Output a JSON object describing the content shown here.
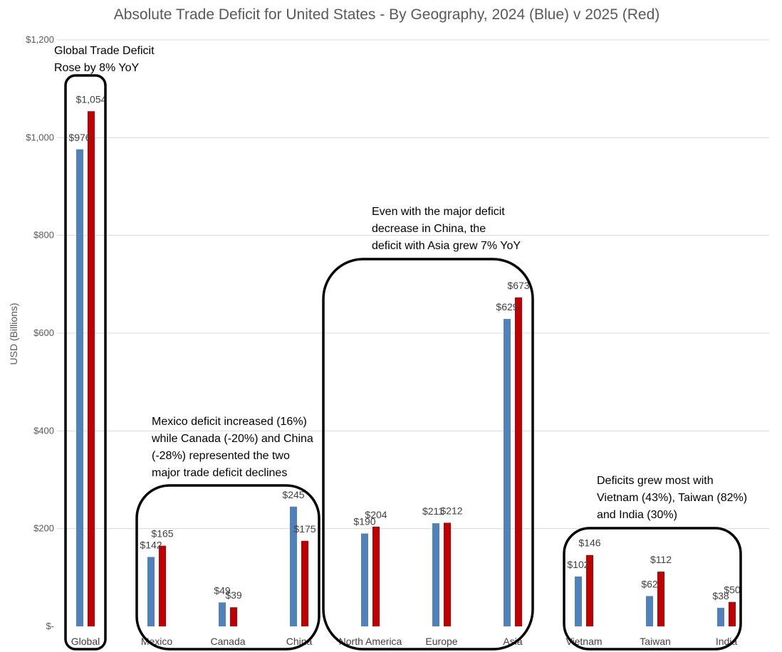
{
  "chart_data": {
    "type": "bar",
    "title": "Absolute Trade Deficit for United States - By Geography, 2024 (Blue) v 2025 (Red)",
    "ylabel": "USD (Billions)",
    "xlabel": "",
    "ylim": [
      0,
      1200
    ],
    "yticks": [
      0,
      200,
      400,
      600,
      800,
      1000,
      1200
    ],
    "ytick_labels": [
      "$-",
      "$200",
      "$400",
      "$600",
      "$800",
      "$1,000",
      "$1,200"
    ],
    "grid": true,
    "categories": [
      "Global",
      "Mexico",
      "Canada",
      "China",
      "North America",
      "Europe",
      "Asia",
      "Vietnam",
      "Taiwan",
      "India"
    ],
    "series": [
      {
        "name": "2024",
        "color": "#4f81bd",
        "values": [
          976,
          142,
          49,
          245,
          190,
          211,
          629,
          102,
          62,
          38
        ],
        "labels": [
          "$976",
          "$142",
          "$49",
          "$245",
          "$190",
          "$211",
          "$629",
          "$102",
          "$62",
          "$38"
        ]
      },
      {
        "name": "2025",
        "color": "#c00000",
        "values": [
          1054,
          165,
          39,
          175,
          204,
          212,
          673,
          146,
          112,
          50
        ],
        "labels": [
          "$1,054",
          "$165",
          "$39",
          "$175",
          "$204",
          "$212",
          "$673",
          "$146",
          "$112",
          "$50"
        ]
      }
    ],
    "annotations": [
      {
        "lines": [
          "Global Trade Deficit",
          "Rose by 8% YoY"
        ],
        "categories": [
          "Global"
        ]
      },
      {
        "lines": [
          "Mexico deficit increased (16%)",
          "while Canada (-20%) and China",
          "(-28%) represented the two",
          "major trade deficit declines"
        ],
        "categories": [
          "Mexico",
          "Canada",
          "China"
        ]
      },
      {
        "lines": [
          "Even with the major deficit",
          "decrease in China, the",
          "deficit with Asia grew 7% YoY"
        ],
        "categories": [
          "North America",
          "Europe",
          "Asia"
        ]
      },
      {
        "lines": [
          "Deficits grew most with",
          "Vietnam (43%), Taiwan (82%)",
          "and India (30%)"
        ],
        "categories": [
          "Vietnam",
          "Taiwan",
          "India"
        ]
      }
    ]
  }
}
